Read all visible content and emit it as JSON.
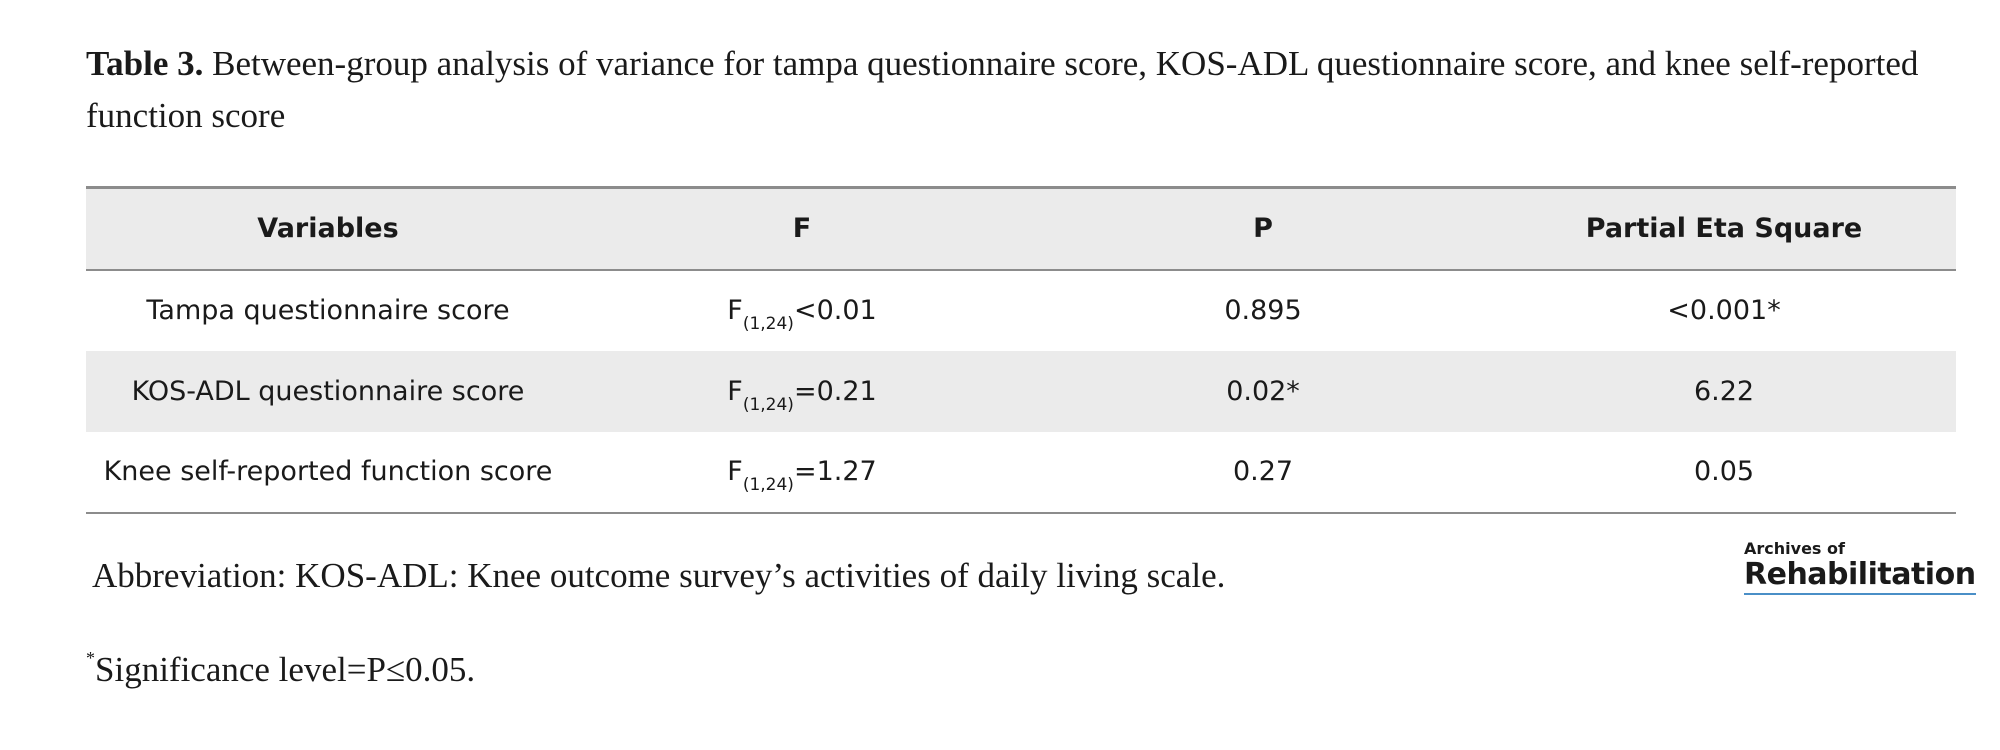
{
  "caption": {
    "label": "Table 3.",
    "text": " Between-group analysis of variance for tampa questionnaire score, KOS-ADL questionnaire score, and knee self-reported function score"
  },
  "table": {
    "headers": [
      "Variables",
      "F",
      "P",
      "Partial Eta Square"
    ],
    "rows": [
      {
        "variable": "Tampa questionnaire score",
        "f_symbol": "F",
        "f_sub": "(1,24)",
        "f_value": "<0.01",
        "p": "0.895",
        "eta": "<0.001*"
      },
      {
        "variable": "KOS-ADL questionnaire score",
        "f_symbol": "F",
        "f_sub": "(1,24)",
        "f_value": "=0.21",
        "p": "0.02*",
        "eta": "6.22"
      },
      {
        "variable": "Knee self-reported function score",
        "f_symbol": "F",
        "f_sub": "(1,24)",
        "f_value": "=1.27",
        "p": "0.27",
        "eta": "0.05"
      }
    ]
  },
  "abbreviation": "Abbreviation: KOS-ADL: Knee outcome survey’s activities of daily living scale.",
  "significance": {
    "mark": "*",
    "text": "Significance level=P≤0.05."
  },
  "logo": {
    "line1": "Archives of",
    "line2": "Rehabilitation"
  }
}
